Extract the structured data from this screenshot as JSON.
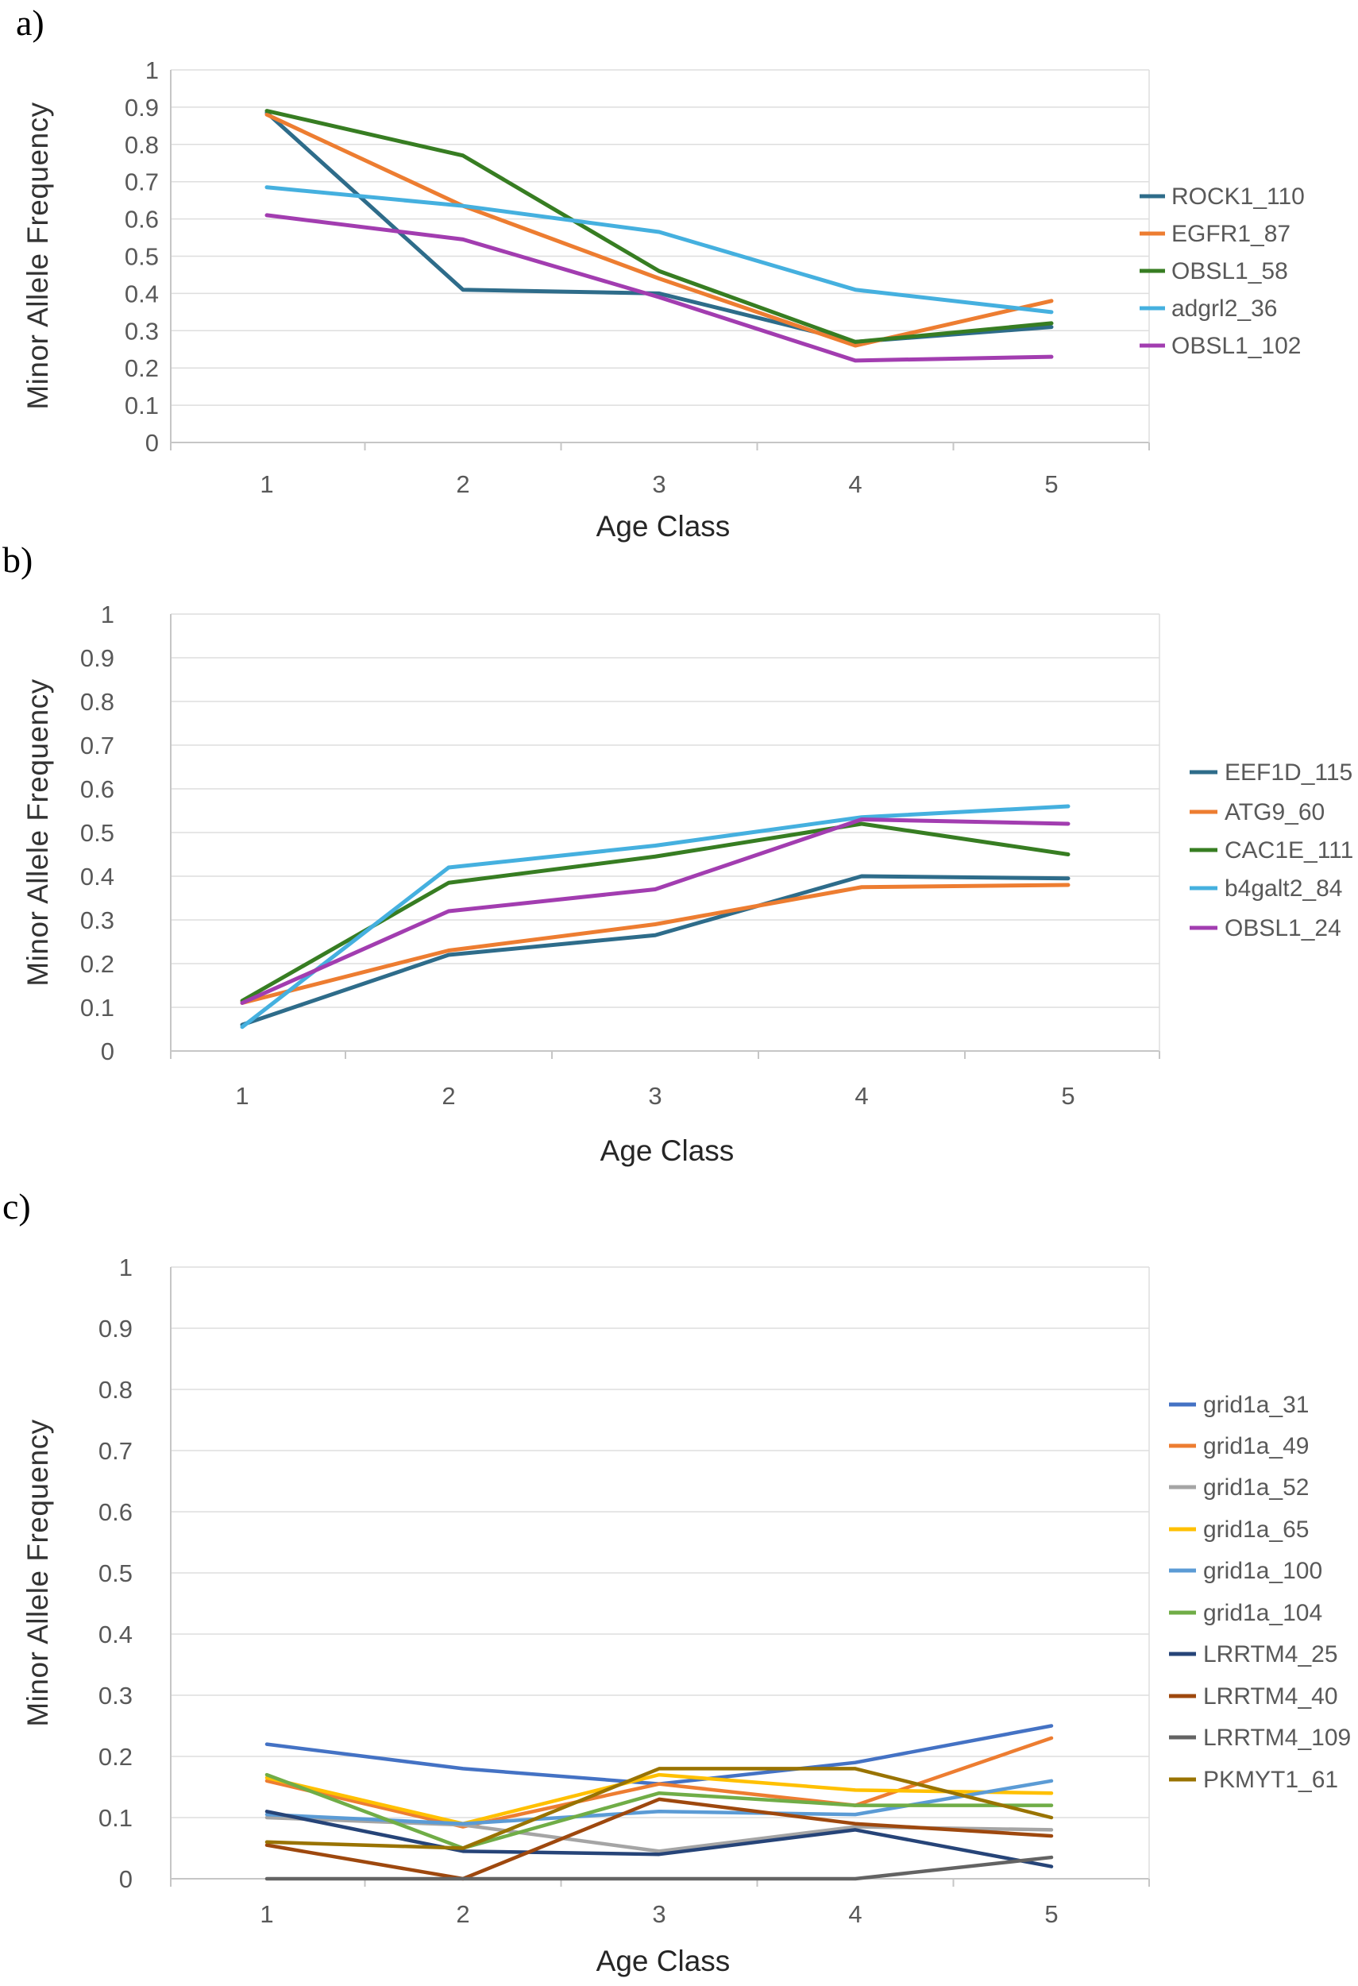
{
  "figure": {
    "panel_letters": [
      "a)",
      "b)",
      "c)"
    ],
    "background_color": "#ffffff",
    "gridline_color": "#dedede",
    "axis_color": "#c6c6c6",
    "tick_label_color": "#595959",
    "legend_label_color": "#595959"
  },
  "chart_data": [
    {
      "type": "line",
      "panel_label": "a)",
      "xlabel": "Age Class",
      "ylabel": "Minor Allele Frequency",
      "categories": [
        "1",
        "2",
        "3",
        "4",
        "5"
      ],
      "y_ticks": [
        "0",
        "0.1",
        "0.2",
        "0.3",
        "0.4",
        "0.5",
        "0.6",
        "0.7",
        "0.8",
        "0.9",
        "1"
      ],
      "ylim": [
        0,
        1
      ],
      "grid": "horizontal",
      "legend_position": "right",
      "series": [
        {
          "name": "ROCK1_110",
          "color": "#2E6C8A",
          "values": [
            0.885,
            0.41,
            0.4,
            0.27,
            0.31
          ]
        },
        {
          "name": "EGFR1_87",
          "color": "#ED7D31",
          "values": [
            0.88,
            0.635,
            0.44,
            0.26,
            0.38
          ]
        },
        {
          "name": "OBSL1_58",
          "color": "#377D22",
          "values": [
            0.89,
            0.77,
            0.46,
            0.27,
            0.32
          ]
        },
        {
          "name": "adgrl2_36",
          "color": "#45B0DF",
          "values": [
            0.685,
            0.635,
            0.565,
            0.41,
            0.35
          ]
        },
        {
          "name": "OBSL1_102",
          "color": "#A23DB0",
          "values": [
            0.61,
            0.545,
            0.39,
            0.22,
            0.23
          ]
        }
      ]
    },
    {
      "type": "line",
      "panel_label": "b)",
      "xlabel": "Age Class",
      "ylabel": "Minor Allele Frequency",
      "categories": [
        "1",
        "2",
        "3",
        "4",
        "5"
      ],
      "y_ticks": [
        "0",
        "0.1",
        "0.2",
        "0.3",
        "0.4",
        "0.5",
        "0.6",
        "0.7",
        "0.8",
        "0.9",
        "1"
      ],
      "ylim": [
        0,
        1
      ],
      "grid": "horizontal",
      "legend_position": "right",
      "series": [
        {
          "name": "EEF1D_115",
          "color": "#2E6C8A",
          "values": [
            0.06,
            0.22,
            0.265,
            0.4,
            0.395
          ]
        },
        {
          "name": "ATG9_60",
          "color": "#ED7D31",
          "values": [
            0.11,
            0.23,
            0.29,
            0.375,
            0.38
          ]
        },
        {
          "name": "CAC1E_111",
          "color": "#377D22",
          "values": [
            0.115,
            0.385,
            0.445,
            0.52,
            0.45
          ]
        },
        {
          "name": "b4galt2_84",
          "color": "#45B0DF",
          "values": [
            0.055,
            0.42,
            0.47,
            0.535,
            0.56
          ]
        },
        {
          "name": "OBSL1_24",
          "color": "#A23DB0",
          "values": [
            0.11,
            0.32,
            0.37,
            0.53,
            0.52
          ]
        }
      ]
    },
    {
      "type": "line",
      "panel_label": "c)",
      "xlabel": "Age Class",
      "ylabel": "Minor Allele Frequency",
      "categories": [
        "1",
        "2",
        "3",
        "4",
        "5"
      ],
      "y_ticks": [
        "0",
        "0.1",
        "0.2",
        "0.3",
        "0.4",
        "0.5",
        "0.6",
        "0.7",
        "0.8",
        "0.9",
        "1"
      ],
      "ylim": [
        0,
        1
      ],
      "grid": "horizontal",
      "legend_position": "right",
      "series": [
        {
          "name": "grid1a_31",
          "color": "#4472C4",
          "values": [
            0.22,
            0.18,
            0.155,
            0.19,
            0.25
          ]
        },
        {
          "name": "grid1a_49",
          "color": "#ED7D31",
          "values": [
            0.16,
            0.085,
            0.155,
            0.12,
            0.23
          ]
        },
        {
          "name": "grid1a_52",
          "color": "#A5A5A5",
          "values": [
            0.1,
            0.088,
            0.045,
            0.085,
            0.08
          ]
        },
        {
          "name": "grid1a_65",
          "color": "#FFC000",
          "values": [
            0.165,
            0.09,
            0.17,
            0.145,
            0.14
          ]
        },
        {
          "name": "grid1a_100",
          "color": "#5B9BD5",
          "values": [
            0.105,
            0.09,
            0.11,
            0.105,
            0.16
          ]
        },
        {
          "name": "grid1a_104",
          "color": "#70AD47",
          "values": [
            0.17,
            0.05,
            0.14,
            0.12,
            0.12
          ]
        },
        {
          "name": "LRRTM4_25",
          "color": "#264478",
          "values": [
            0.11,
            0.045,
            0.04,
            0.08,
            0.02
          ]
        },
        {
          "name": "LRRTM4_40",
          "color": "#9E480E",
          "values": [
            0.055,
            0.0,
            0.13,
            0.09,
            0.07
          ]
        },
        {
          "name": "LRRTM4_109",
          "color": "#636363",
          "values": [
            0.0,
            0.0,
            0.0,
            0.0,
            0.035
          ]
        },
        {
          "name": "PKMYT1_61",
          "color": "#997300",
          "values": [
            0.06,
            0.05,
            0.18,
            0.18,
            0.1
          ]
        }
      ]
    }
  ]
}
